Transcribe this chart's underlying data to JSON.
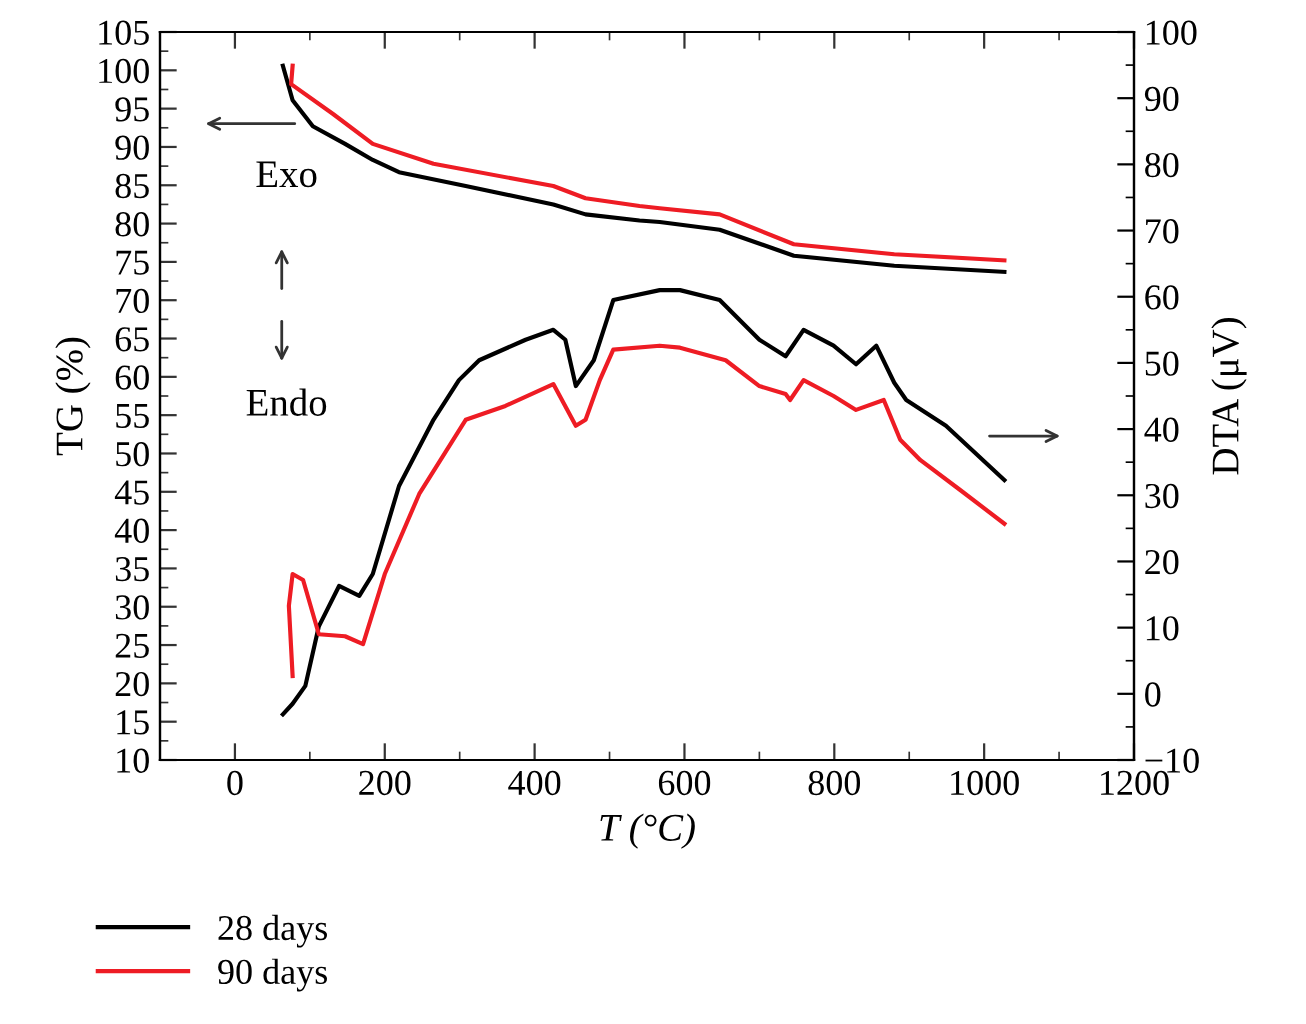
{
  "chart_data": {
    "type": "line",
    "xlabel": "T (°C)",
    "ylabel": "TG (%)",
    "y2label": "DTA (μV)",
    "xlim": [
      -100,
      1200
    ],
    "xticks": [
      0,
      200,
      400,
      600,
      800,
      1000,
      1200
    ],
    "ylim": [
      10,
      105
    ],
    "yticks": [
      10,
      15,
      20,
      25,
      30,
      35,
      40,
      45,
      50,
      55,
      60,
      65,
      70,
      75,
      80,
      85,
      90,
      95,
      100,
      105
    ],
    "y2lim": [
      -10,
      100
    ],
    "y2ticks": [
      -10,
      0,
      10,
      20,
      30,
      40,
      50,
      60,
      70,
      80,
      90,
      100
    ],
    "grid": false,
    "legend": "bottom left",
    "marker": "none",
    "line_style": "solid",
    "annotations": [
      "Exo",
      "Endo"
    ],
    "series": [
      {
        "name": "28 days",
        "color": "#000000",
        "x": [
          64,
          77,
          104,
          147,
          184,
          219,
          308,
          425,
          468,
          540,
          567,
          647,
          746,
          880,
          1027
        ],
        "values": [
          100.6,
          96.1,
          92.7,
          90.4,
          88.3,
          86.7,
          84.9,
          82.5,
          81.2,
          80.4,
          80.2,
          79.2,
          75.8,
          74.5,
          73.7
        ]
      },
      {
        "name": "90 days",
        "color": "#ee1c24",
        "x": [
          77,
          75,
          131,
          184,
          265,
          425,
          468,
          540,
          567,
          647,
          746,
          880,
          1027
        ],
        "values": [
          100.6,
          98.2,
          94.3,
          90.4,
          87.8,
          84.9,
          83.3,
          82.3,
          82.0,
          81.2,
          77.3,
          76.0,
          75.2
        ]
      },
      {
        "color": "#000000",
        "axis": "y2",
        "x": [
          64,
          77,
          94,
          112,
          139,
          166,
          184,
          219,
          265,
          299,
          326,
          388,
          425,
          441,
          455,
          479,
          505,
          567,
          594,
          647,
          700,
          735,
          759,
          799,
          829,
          856,
          880,
          896,
          949,
          1027
        ],
        "values": [
          -3.1,
          -1.5,
          1.2,
          10.2,
          16.3,
          14.8,
          18.1,
          31.4,
          41.4,
          47.4,
          50.4,
          53.5,
          55.0,
          53.5,
          46.5,
          50.4,
          59.5,
          61.0,
          61.0,
          59.5,
          53.5,
          51.0,
          55.0,
          52.6,
          49.8,
          52.6,
          47.0,
          44.4,
          40.5,
          32.3
        ]
      },
      {
        "color": "#ee1c24",
        "axis": "y2",
        "x": [
          77,
          72,
          77,
          91,
          112,
          147,
          171,
          200,
          246,
          308,
          361,
          425,
          455,
          468,
          487,
          505,
          567,
          594,
          655,
          700,
          735,
          741,
          759,
          799,
          829,
          866,
          888,
          915,
          968,
          1027
        ],
        "values": [
          2.7,
          13.3,
          18.1,
          17.2,
          9.0,
          8.7,
          7.5,
          18.1,
          30.2,
          41.4,
          43.5,
          46.8,
          40.5,
          41.4,
          47.4,
          52.0,
          52.6,
          52.3,
          50.4,
          46.5,
          45.3,
          44.4,
          47.4,
          45.0,
          42.9,
          44.4,
          38.4,
          35.3,
          30.8,
          25.7
        ]
      }
    ]
  }
}
